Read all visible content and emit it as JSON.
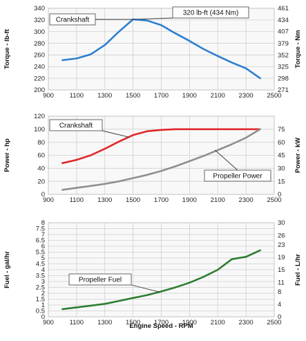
{
  "chart_data": [
    {
      "type": "line",
      "ylabel": "Torque - lb-ft",
      "y2label": "Torque - Nm",
      "xlim": [
        900,
        2500
      ],
      "ylim": [
        200,
        340
      ],
      "y2lim": [
        271,
        461
      ],
      "x_ticks": [
        900,
        1100,
        1300,
        1500,
        1700,
        1900,
        2100,
        2300,
        2500
      ],
      "y_ticks": [
        200,
        220,
        240,
        260,
        280,
        300,
        320,
        340
      ],
      "y2_ticks": [
        271,
        298,
        325,
        352,
        379,
        407,
        434,
        461
      ],
      "grid": true,
      "series": [
        {
          "name": "Crankshaft",
          "color": "#2a7fd0",
          "x": [
            1000,
            1100,
            1200,
            1300,
            1400,
            1500,
            1600,
            1700,
            1800,
            1900,
            2000,
            2100,
            2200,
            2300,
            2400
          ],
          "y": [
            251,
            254,
            261,
            277,
            300,
            321,
            319,
            311,
            297,
            284,
            270,
            258,
            247,
            237,
            220
          ]
        }
      ],
      "annotations": [
        {
          "text": "Crankshaft",
          "target_x": 1500,
          "target_y": 321
        },
        {
          "text": "320 lb-ft (434 Nm)",
          "target_x": 1500,
          "target_y": 321
        }
      ]
    },
    {
      "type": "line",
      "ylabel": "Power - hp",
      "y2label": "Power - kW",
      "xlim": [
        900,
        2500
      ],
      "ylim": [
        0,
        120
      ],
      "y2lim": [
        0,
        90
      ],
      "x_ticks": [
        900,
        1100,
        1300,
        1500,
        1700,
        1900,
        2100,
        2300,
        2500
      ],
      "y_ticks": [
        0,
        20,
        40,
        60,
        80,
        100,
        120
      ],
      "y2_ticks": [
        0,
        15,
        30,
        45,
        60,
        75
      ],
      "grid": true,
      "series": [
        {
          "name": "Crankshaft",
          "color": "#e0262b",
          "x": [
            1000,
            1100,
            1200,
            1300,
            1400,
            1500,
            1600,
            1700,
            1800,
            1900,
            2000,
            2100,
            2200,
            2300,
            2400
          ],
          "y": [
            48,
            53,
            60,
            70,
            81,
            91,
            97,
            99,
            100,
            100,
            100,
            100,
            100,
            100,
            100
          ]
        },
        {
          "name": "Propeller Power",
          "color": "#8f8f8f",
          "x": [
            1000,
            1100,
            1200,
            1300,
            1400,
            1500,
            1600,
            1700,
            1800,
            1900,
            2000,
            2100,
            2200,
            2300,
            2400
          ],
          "y": [
            7,
            10,
            13,
            16,
            20,
            25,
            30,
            36,
            43,
            51,
            59,
            68,
            77,
            87,
            100
          ]
        }
      ],
      "annotations": [
        {
          "text": "Crankshaft",
          "target_x": 1470,
          "target_y": 88
        },
        {
          "text": "Propeller Power",
          "target_x": 2080,
          "target_y": 68
        }
      ]
    },
    {
      "type": "line",
      "xlabel": "Engine Speed - RPM",
      "ylabel": "Fuel - gal/hr",
      "y2label": "Fuel - L/hr",
      "xlim": [
        900,
        2500
      ],
      "ylim": [
        0,
        8
      ],
      "y2lim": [
        0,
        30
      ],
      "x_ticks": [
        900,
        1100,
        1300,
        1500,
        1700,
        1900,
        2100,
        2300,
        2500
      ],
      "y_ticks": [
        0,
        0.5,
        1,
        1.5,
        2,
        2.5,
        3,
        3.5,
        4,
        4.5,
        5,
        5.5,
        6,
        6.5,
        7,
        7.5,
        8
      ],
      "y2_ticks": [
        0,
        4,
        8,
        11,
        15,
        19,
        23,
        26,
        30
      ],
      "grid": true,
      "series": [
        {
          "name": "Propeller Fuel",
          "color": "#2e7d32",
          "x": [
            1000,
            1100,
            1200,
            1300,
            1400,
            1500,
            1600,
            1700,
            1800,
            1900,
            2000,
            2100,
            2200,
            2300,
            2400
          ],
          "y": [
            0.65,
            0.8,
            0.95,
            1.1,
            1.35,
            1.6,
            1.85,
            2.15,
            2.5,
            2.9,
            3.4,
            4.0,
            4.9,
            5.1,
            5.65
          ]
        }
      ],
      "annotations": [
        {
          "text": "Propeller Fuel",
          "target_x": 1690,
          "target_y": 2.1
        }
      ]
    }
  ]
}
